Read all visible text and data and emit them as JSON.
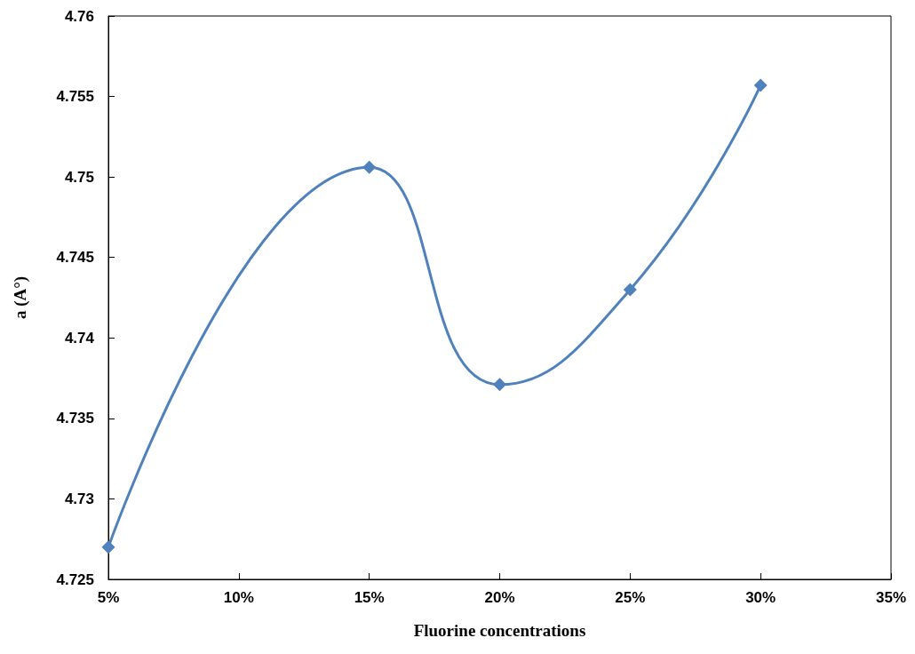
{
  "chart_data": {
    "type": "line",
    "xlabel": "Fluorine concentrations",
    "ylabel": "a (A°)",
    "x": [
      5,
      15,
      20,
      25,
      30
    ],
    "series": [
      {
        "color": "#4f81bd",
        "values": [
          4.727,
          4.7506,
          4.7371,
          4.743,
          4.7557
        ]
      }
    ],
    "xlim": [
      5,
      35
    ],
    "xticks": [
      {
        "value": 5,
        "label": "5%"
      },
      {
        "value": 10,
        "label": "10%"
      },
      {
        "value": 15,
        "label": "15%"
      },
      {
        "value": 20,
        "label": "20%"
      },
      {
        "value": 25,
        "label": "25%"
      },
      {
        "value": 30,
        "label": "30%"
      },
      {
        "value": 35,
        "label": "35%"
      }
    ],
    "ylim": [
      4.725,
      4.76
    ],
    "yticks": [
      4.725,
      4.73,
      4.735,
      4.74,
      4.745,
      4.75,
      4.755,
      4.76
    ],
    "marker": "diamond",
    "grid": false
  }
}
